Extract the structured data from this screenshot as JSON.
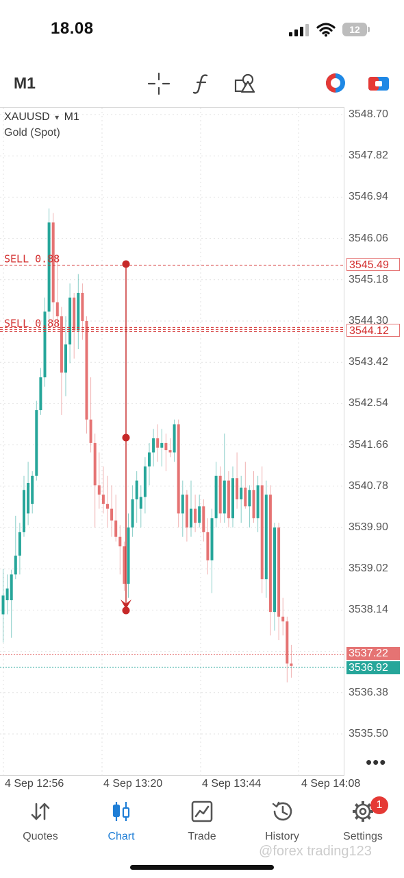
{
  "status_bar": {
    "time": "18.08",
    "battery": "12"
  },
  "toolbar": {
    "timeframe": "M1"
  },
  "chart": {
    "symbol": "XAUUSD",
    "symbol_caret": "▾",
    "timeframe": "M1",
    "symbol_description": "Gold (Spot)",
    "price_labels": [
      "3548.70",
      "3547.82",
      "3546.94",
      "3546.06",
      "3545.18",
      "3544.30",
      "3543.42",
      "3542.54",
      "3541.66",
      "3540.78",
      "3539.90",
      "3539.02",
      "3538.14",
      "3536.38",
      "3535.50"
    ],
    "time_labels": [
      "4 Sep 12:56",
      "4 Sep 13:20",
      "4 Sep 13:44",
      "4 Sep 14:08"
    ],
    "order_lines": [
      {
        "label": "SELL 0.88",
        "price": 3545.49
      },
      {
        "label": "SELL 0.88",
        "price": 3544.12
      }
    ],
    "bid_price": "3536.92",
    "ask_price": "3537.22",
    "order_tag_1": "3545.49",
    "order_tag_2": "3544.12",
    "colors": {
      "bull": "#26a69a",
      "bear": "#e57373",
      "order": "#d32f2f",
      "ask": "#e57373",
      "bid": "#26a69a"
    },
    "more": "•••"
  },
  "bottom_nav": {
    "items": [
      {
        "label": "Quotes",
        "icon": "quotes-arrows-icon"
      },
      {
        "label": "Chart",
        "icon": "candlestick-icon"
      },
      {
        "label": "Trade",
        "icon": "trade-chart-icon"
      },
      {
        "label": "History",
        "icon": "history-clock-icon"
      },
      {
        "label": "Settings",
        "icon": "gear-icon"
      }
    ],
    "active": "Chart",
    "settings_badge": "1"
  },
  "watermark": "@forex trading123"
}
